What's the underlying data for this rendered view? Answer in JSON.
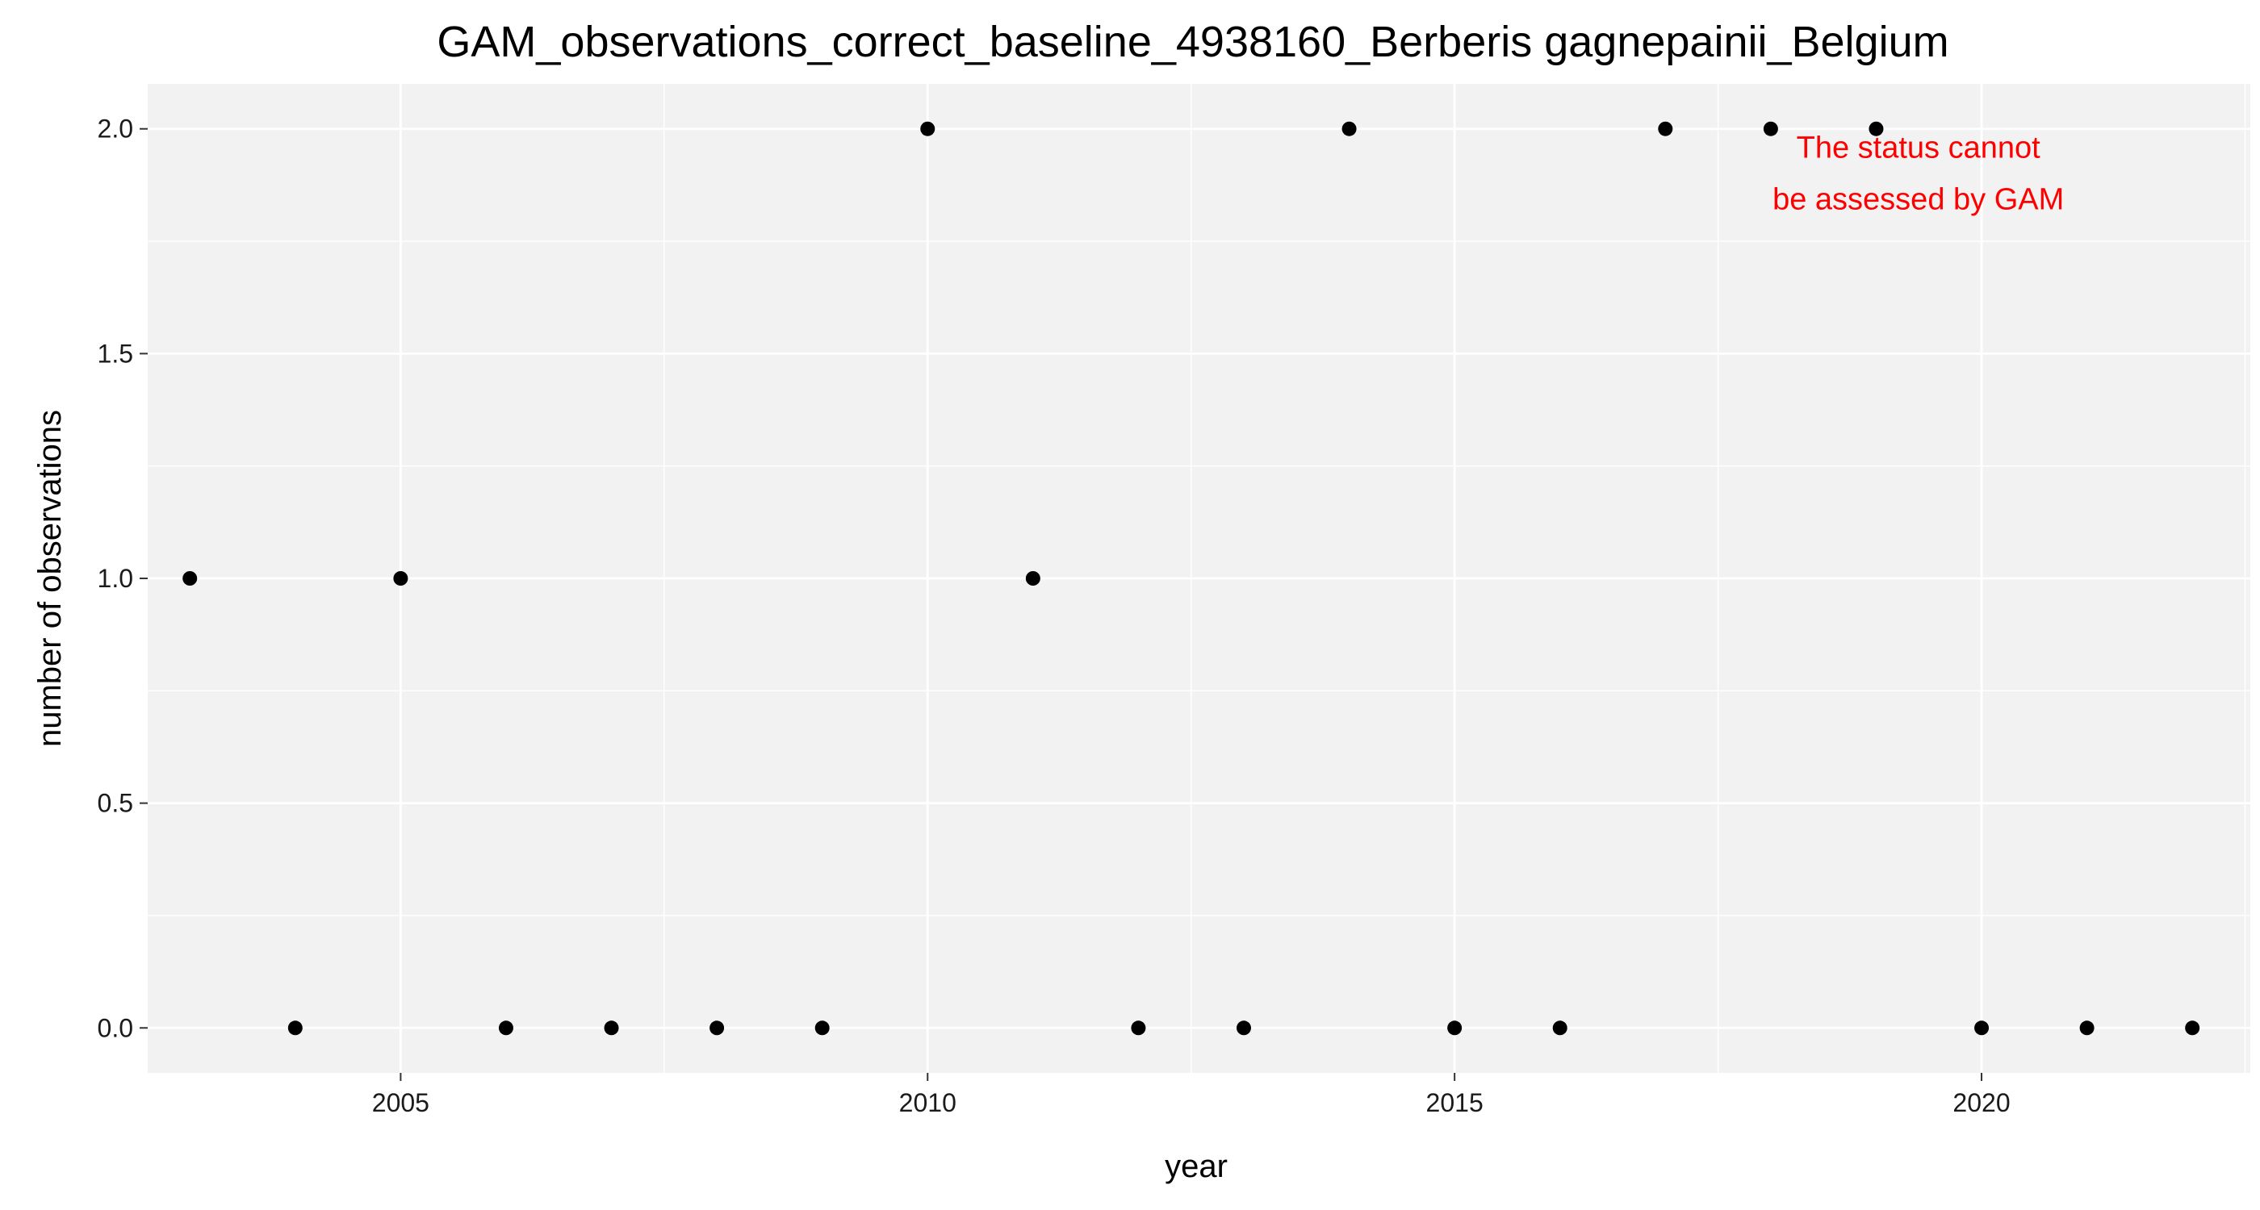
{
  "chart_data": {
    "type": "scatter",
    "title": "GAM_observations_correct_baseline_4938160_Berberis gagnepainii_Belgium",
    "xlabel": "year",
    "ylabel": "number of observations",
    "xlim": [
      2002.6,
      2022.55
    ],
    "ylim": [
      -0.1,
      2.1
    ],
    "x_ticks": [
      2005,
      2010,
      2015,
      2020
    ],
    "x_minor_ticks": [
      2002.5,
      2007.5,
      2012.5,
      2017.5,
      2022.5
    ],
    "y_ticks": [
      0.0,
      0.5,
      1.0,
      1.5,
      2.0
    ],
    "y_tick_labels": [
      "0.0",
      "0.5",
      "1.0",
      "1.5",
      "2.0"
    ],
    "y_minor_ticks": [
      0.25,
      0.75,
      1.25,
      1.75
    ],
    "grid": true,
    "panel_background": "#f2f2f2",
    "grid_color": "#ffffff",
    "point_color": "#000000",
    "x": [
      2003,
      2004,
      2005,
      2006,
      2007,
      2008,
      2009,
      2010,
      2011,
      2012,
      2013,
      2014,
      2015,
      2016,
      2017,
      2018,
      2019,
      2020,
      2021,
      2022
    ],
    "y": [
      1,
      0,
      1,
      0,
      0,
      0,
      0,
      2,
      1,
      0,
      0,
      2,
      0,
      0,
      2,
      2,
      2,
      0,
      0,
      0
    ],
    "annotation": {
      "lines": [
        "The status cannot",
        "be assessed by GAM"
      ],
      "color": "#ff0000",
      "anchor_x": 2019.4,
      "anchor_y": 1.9
    }
  }
}
